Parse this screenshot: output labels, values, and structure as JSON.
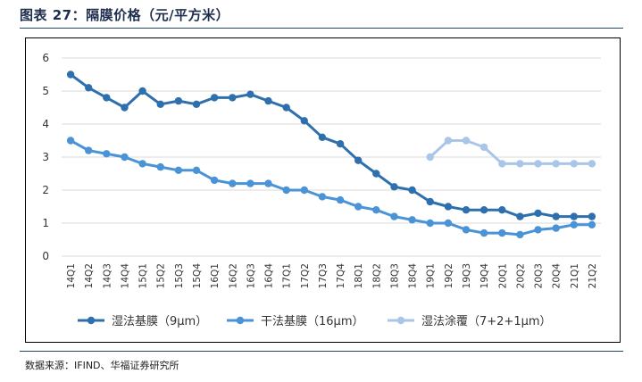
{
  "figure": {
    "title": "图表 27：隔膜价格（元/平方米）",
    "source": "数据来源：IFIND、华福证券研究所"
  },
  "chart_data": {
    "type": "line",
    "title": "隔膜价格（元/平方米）",
    "xlabel": "",
    "ylabel": "",
    "ylim": [
      0,
      6
    ],
    "yticks": [
      0,
      1,
      2,
      3,
      4,
      5,
      6
    ],
    "grid": true,
    "legend_position": "bottom",
    "categories": [
      "14Q1",
      "14Q2",
      "14Q3",
      "14Q4",
      "15Q1",
      "15Q2",
      "15Q3",
      "15Q4",
      "16Q1",
      "16Q2",
      "16Q3",
      "16Q4",
      "17Q1",
      "17Q2",
      "17Q3",
      "17Q4",
      "18Q1",
      "18Q2",
      "18Q3",
      "18Q4",
      "19Q1",
      "19Q2",
      "19Q3",
      "19Q4",
      "20Q1",
      "20Q2",
      "20Q3",
      "20Q4",
      "21Q1",
      "21Q2"
    ],
    "series": [
      {
        "name": "湿法基膜（9μm）",
        "color": "#2e6fad",
        "values": [
          5.5,
          5.1,
          4.8,
          4.5,
          5.0,
          4.6,
          4.7,
          4.6,
          4.8,
          4.8,
          4.9,
          4.7,
          4.5,
          4.1,
          3.6,
          3.4,
          2.9,
          2.5,
          2.1,
          2.0,
          1.65,
          1.5,
          1.4,
          1.4,
          1.4,
          1.2,
          1.3,
          1.2,
          1.2,
          1.2
        ]
      },
      {
        "name": "干法基膜（16μm）",
        "color": "#4a93d6",
        "values": [
          3.5,
          3.2,
          3.1,
          3.0,
          2.8,
          2.7,
          2.6,
          2.6,
          2.3,
          2.2,
          2.2,
          2.2,
          2.0,
          2.0,
          1.8,
          1.7,
          1.5,
          1.4,
          1.2,
          1.1,
          1.0,
          1.0,
          0.8,
          0.7,
          0.7,
          0.65,
          0.8,
          0.85,
          0.95,
          0.95
        ]
      },
      {
        "name": "湿法涂覆（7+2+1μm）",
        "color": "#a9c6e8",
        "values": [
          null,
          null,
          null,
          null,
          null,
          null,
          null,
          null,
          null,
          null,
          null,
          null,
          null,
          null,
          null,
          null,
          null,
          null,
          null,
          null,
          3.0,
          3.5,
          3.5,
          3.3,
          2.8,
          2.8,
          2.8,
          2.8,
          2.8,
          2.8
        ]
      }
    ]
  }
}
